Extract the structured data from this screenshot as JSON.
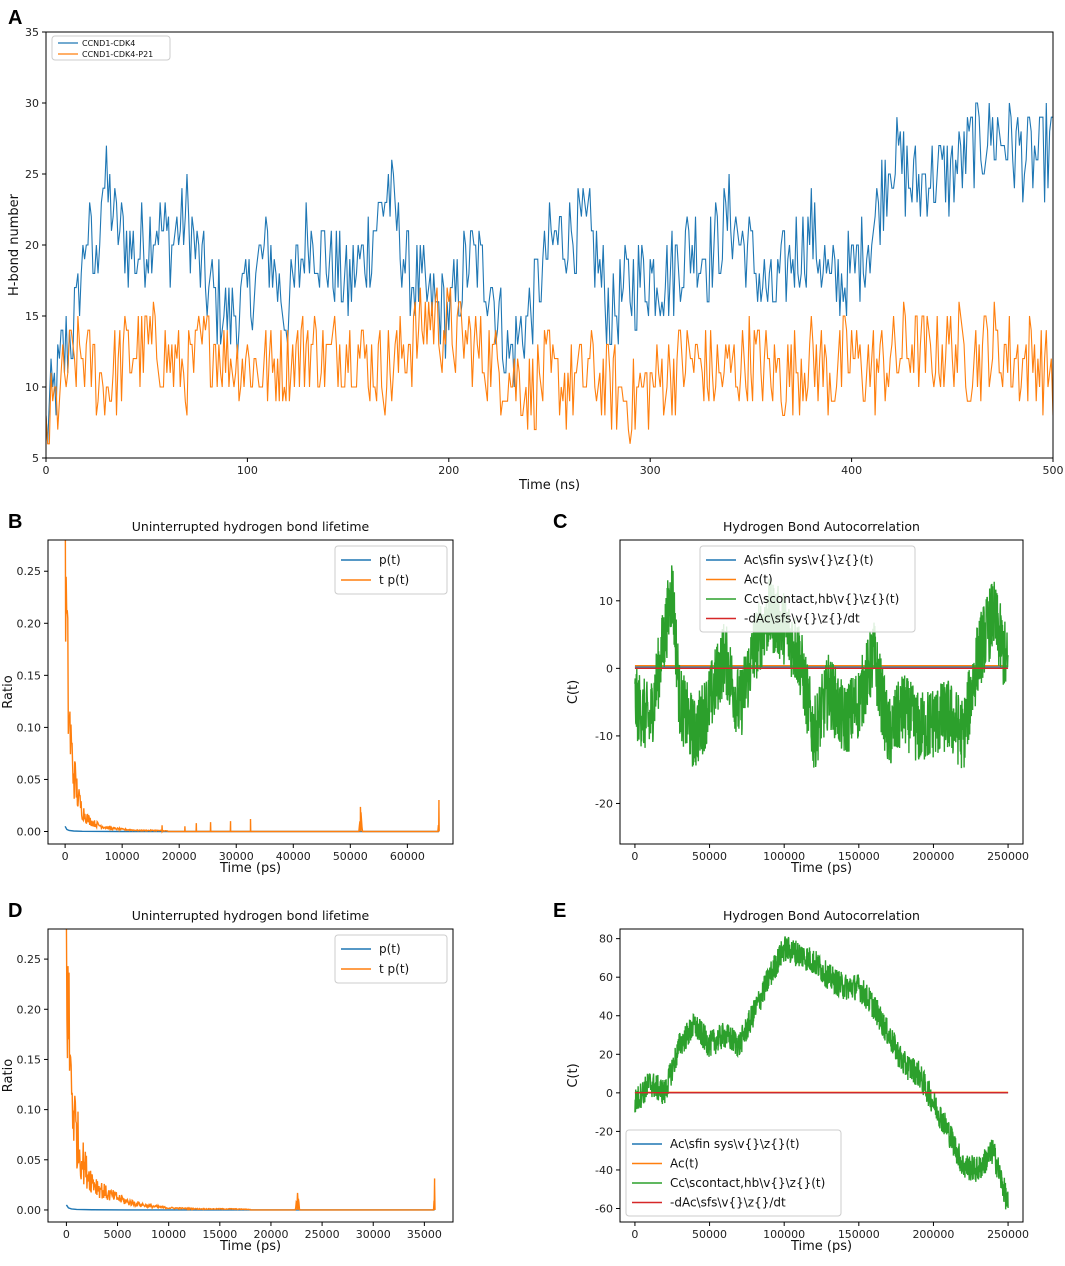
{
  "colors": {
    "blue": "#1f77b4",
    "orange": "#ff7f0e",
    "green": "#2ca02c",
    "red": "#d62728"
  },
  "chart_data": [
    {
      "panel": "A",
      "type": "line",
      "title": "",
      "xlabel": "Time (ns)",
      "ylabel": "H-bond number",
      "xlim": [
        0,
        500
      ],
      "ylim": [
        5,
        35
      ],
      "xticks": [
        0,
        100,
        200,
        300,
        400,
        500
      ],
      "yticks": [
        5,
        10,
        15,
        20,
        25,
        30,
        35
      ],
      "legend": "top-left",
      "series": [
        {
          "name": "CCND1-CDK4",
          "color": "#1f77b4",
          "x": [
            0,
            5,
            10,
            15,
            20,
            25,
            28,
            35,
            45,
            55,
            62,
            70,
            80,
            90,
            100,
            110,
            120,
            130,
            140,
            150,
            160,
            170,
            180,
            190,
            200,
            210,
            220,
            230,
            240,
            250,
            260,
            270,
            280,
            290,
            300,
            310,
            320,
            330,
            340,
            350,
            360,
            370,
            380,
            390,
            400,
            410,
            420,
            430,
            440,
            450,
            460,
            470,
            480,
            490,
            500
          ],
          "y": [
            7,
            10,
            13,
            15,
            21,
            18,
            25,
            21,
            19,
            22,
            20,
            22,
            17,
            15,
            16,
            20,
            15,
            21,
            19,
            17,
            20,
            24,
            18,
            16,
            15,
            19,
            18,
            12,
            15,
            20,
            21,
            21,
            15,
            17,
            18,
            18,
            20,
            19,
            22,
            19,
            16,
            19,
            21,
            17,
            18,
            21,
            27,
            24,
            25,
            25,
            27,
            28,
            27,
            26,
            27
          ]
        },
        {
          "name": "CCND1-CDK4-P21",
          "color": "#ff7f0e",
          "x": [
            0,
            5,
            10,
            15,
            20,
            25,
            30,
            40,
            50,
            60,
            70,
            80,
            90,
            100,
            110,
            120,
            130,
            140,
            150,
            160,
            170,
            180,
            190,
            200,
            210,
            220,
            230,
            240,
            250,
            260,
            270,
            280,
            290,
            300,
            310,
            320,
            330,
            340,
            350,
            360,
            370,
            380,
            390,
            400,
            410,
            420,
            430,
            440,
            450,
            460,
            470,
            480,
            490,
            500
          ],
          "y": [
            7,
            9,
            11,
            12,
            12,
            11,
            10,
            12,
            13,
            12,
            11,
            13,
            12,
            12,
            11,
            12,
            13,
            12,
            13,
            12,
            11,
            13,
            15,
            14,
            13,
            12,
            11,
            10,
            11,
            10,
            11,
            10,
            9,
            10,
            11,
            12,
            11,
            11,
            12,
            11,
            11,
            12,
            11,
            12,
            11,
            12,
            13,
            12,
            13,
            12,
            13,
            12,
            12,
            11
          ]
        }
      ]
    },
    {
      "panel": "B",
      "type": "line",
      "title": "Uninterrupted hydrogen bond lifetime",
      "xlabel": "Time (ps)",
      "ylabel": "Ratio",
      "xlim": [
        -3000,
        68000
      ],
      "ylim": [
        -0.012,
        0.28
      ],
      "xticks": [
        0,
        10000,
        20000,
        30000,
        40000,
        50000,
        60000
      ],
      "yticks": [
        0.0,
        0.05,
        0.1,
        0.15,
        0.2,
        0.25
      ],
      "legend": "top-right",
      "series": [
        {
          "name": "p(t)",
          "color": "#1f77b4",
          "x": [
            0,
            300,
            700,
            1500,
            3000,
            10000,
            65536
          ],
          "y": [
            0.005,
            0.002,
            0.001,
            0.0005,
            0.0002,
            0.0,
            0.0
          ]
        },
        {
          "name": "t p(t)",
          "color": "#ff7f0e",
          "x": [
            0,
            200,
            500,
            800,
            1200,
            1700,
            2300,
            3000,
            4000,
            5000,
            6500,
            8000,
            10000,
            13000,
            16000,
            20000,
            25000,
            30000,
            40000,
            51500,
            51800,
            52100,
            60000,
            65400,
            65536
          ],
          "y": [
            0.265,
            0.2,
            0.14,
            0.1,
            0.07,
            0.05,
            0.032,
            0.02,
            0.012,
            0.008,
            0.005,
            0.003,
            0.002,
            0.001,
            0.001,
            0.0,
            0.0,
            0.0,
            0.0,
            0.0,
            0.019,
            0.0,
            0.0,
            0.0,
            0.024
          ],
          "spikes_x": [
            17000,
            21000,
            23000,
            25500,
            29000,
            32500
          ],
          "spikes_y": [
            0.006,
            0.005,
            0.008,
            0.009,
            0.01,
            0.012
          ]
        }
      ]
    },
    {
      "panel": "C",
      "type": "line",
      "title": "Hydrogen Bond Autocorrelation",
      "xlabel": "Time (ps)",
      "ylabel": "C(t)",
      "xlim": [
        -10000,
        260000
      ],
      "ylim": [
        -26,
        19
      ],
      "xticks": [
        0,
        50000,
        100000,
        150000,
        200000,
        250000
      ],
      "yticks": [
        -20,
        -10,
        0,
        10
      ],
      "legend": "top-center",
      "series": [
        {
          "name": "Ac\\sfin sys\\v{}\\z{}(t)",
          "color": "#1f77b4",
          "x": [
            0,
            250000
          ],
          "y": [
            0.2,
            0.2
          ]
        },
        {
          "name": "Ac(t)",
          "color": "#ff7f0e",
          "x": [
            0,
            250000
          ],
          "y": [
            0.4,
            0.4
          ]
        },
        {
          "name": "Cc\\scontact,hb\\v{}\\z{}(t)",
          "color": "#2ca02c",
          "x": [
            0,
            10000,
            20000,
            25000,
            30000,
            40000,
            50000,
            60000,
            70000,
            80000,
            90000,
            100000,
            110000,
            120000,
            130000,
            140000,
            150000,
            160000,
            170000,
            180000,
            190000,
            200000,
            210000,
            220000,
            230000,
            240000,
            250000
          ],
          "y": [
            -5,
            -8,
            5,
            12,
            -5,
            -10,
            -5,
            2,
            -6,
            3,
            8,
            6,
            2,
            -10,
            -3,
            -8,
            -5,
            2,
            -10,
            -6,
            -9,
            -8,
            -7,
            -10,
            2,
            8,
            0
          ]
        },
        {
          "name": "-dAc\\sfs\\v{}\\z{}/dt",
          "color": "#d62728",
          "x": [
            0,
            250000
          ],
          "y": [
            0,
            0
          ]
        }
      ]
    },
    {
      "panel": "D",
      "type": "line",
      "title": "Uninterrupted hydrogen bond lifetime",
      "xlabel": "Time (ps)",
      "ylabel": "Ratio",
      "xlim": [
        -1800,
        37800
      ],
      "ylim": [
        -0.012,
        0.28
      ],
      "xticks": [
        0,
        5000,
        10000,
        15000,
        20000,
        25000,
        30000,
        35000
      ],
      "yticks": [
        0.0,
        0.05,
        0.1,
        0.15,
        0.2,
        0.25
      ],
      "legend": "top-right",
      "series": [
        {
          "name": "p(t)",
          "color": "#1f77b4",
          "x": [
            0,
            200,
            500,
            1000,
            2500,
            6000,
            36000
          ],
          "y": [
            0.005,
            0.002,
            0.001,
            0.0005,
            0.0002,
            0.0,
            0.0
          ]
        },
        {
          "name": "t p(t)",
          "color": "#ff7f0e",
          "x": [
            0,
            150,
            400,
            700,
            1000,
            1400,
            1900,
            2500,
            3200,
            4000,
            5000,
            6000,
            7000,
            8000,
            9000,
            10000,
            13000,
            16000,
            20000,
            22400,
            22600,
            22800,
            30000,
            35900,
            36000
          ],
          "y": [
            0.27,
            0.2,
            0.14,
            0.1,
            0.075,
            0.055,
            0.04,
            0.03,
            0.022,
            0.016,
            0.012,
            0.008,
            0.006,
            0.004,
            0.003,
            0.002,
            0.001,
            0.001,
            0.0,
            0.0,
            0.017,
            0.0,
            0.0,
            0.0,
            0.025
          ]
        }
      ]
    },
    {
      "panel": "E",
      "type": "line",
      "title": "Hydrogen Bond Autocorrelation",
      "xlabel": "Time (ps)",
      "ylabel": "C(t)",
      "xlim": [
        -10000,
        260000
      ],
      "ylim": [
        -67,
        85
      ],
      "xticks": [
        0,
        50000,
        100000,
        150000,
        200000,
        250000
      ],
      "yticks": [
        -60,
        -40,
        -20,
        0,
        20,
        40,
        60,
        80
      ],
      "legend": "bottom-left",
      "series": [
        {
          "name": "Ac\\sfin sys\\v{}\\z{}(t)",
          "color": "#1f77b4",
          "x": [
            0,
            250000
          ],
          "y": [
            0,
            0
          ]
        },
        {
          "name": "Ac(t)",
          "color": "#ff7f0e",
          "x": [
            0,
            250000
          ],
          "y": [
            0.3,
            0.3
          ]
        },
        {
          "name": "Cc\\scontact,hb\\v{}\\z{}(t)",
          "color": "#2ca02c",
          "x": [
            0,
            10000,
            20000,
            30000,
            40000,
            50000,
            60000,
            70000,
            80000,
            90000,
            100000,
            110000,
            120000,
            130000,
            140000,
            150000,
            160000,
            170000,
            180000,
            190000,
            200000,
            210000,
            220000,
            230000,
            240000,
            250000
          ],
          "y": [
            -5,
            5,
            0,
            25,
            35,
            25,
            30,
            25,
            42,
            60,
            75,
            72,
            68,
            60,
            55,
            55,
            45,
            30,
            15,
            10,
            -5,
            -20,
            -38,
            -40,
            -30,
            -58
          ]
        },
        {
          "name": "-dAc\\sfs\\v{}\\z{}/dt",
          "color": "#d62728",
          "x": [
            0,
            250000
          ],
          "y": [
            0.1,
            0.1
          ]
        }
      ]
    }
  ]
}
